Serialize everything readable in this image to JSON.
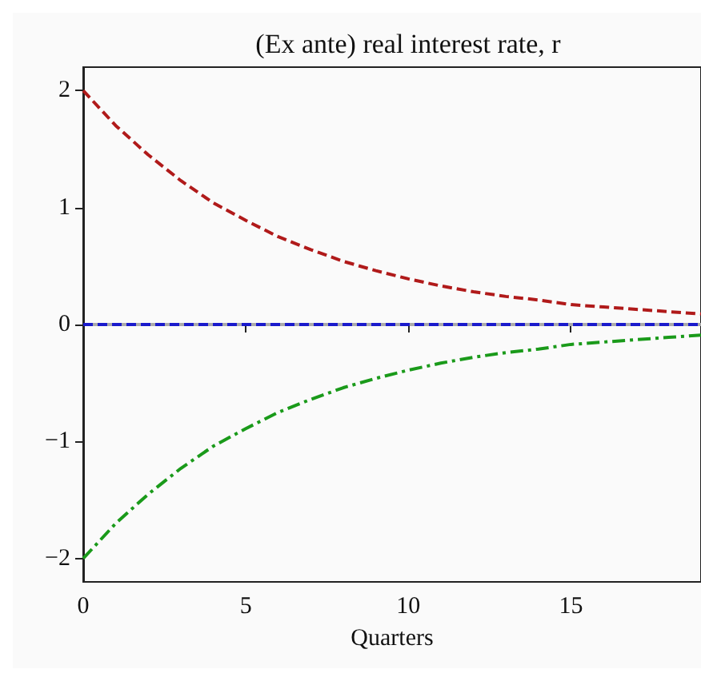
{
  "chart_data": {
    "type": "line",
    "title": "(Ex ante) real interest rate, r",
    "xlabel": "Quarters",
    "x": [
      0,
      1,
      2,
      3,
      4,
      5,
      6,
      7,
      8,
      9,
      10,
      11,
      12,
      13,
      14,
      15,
      16,
      17,
      18,
      19
    ],
    "xlim": [
      0,
      19
    ],
    "xticks": [
      0,
      5,
      10,
      15
    ],
    "ylim": [
      -2.2,
      2.2
    ],
    "yticks": [
      {
        "value": -2,
        "label": "−2"
      },
      {
        "value": -1,
        "label": "−1"
      },
      0,
      1,
      2
    ],
    "grid": false,
    "marker": "none",
    "series": [
      {
        "color": "#aaaaaa",
        "line_style": "solid",
        "values": [
          0,
          0,
          0,
          0,
          0,
          0,
          0,
          0,
          0,
          0,
          0,
          0,
          0,
          0,
          0,
          0,
          0,
          0,
          0,
          0
        ]
      },
      {
        "color": "#1a1acc",
        "line_style": "dashed",
        "values": [
          0,
          0,
          0,
          0,
          0,
          0,
          0,
          0,
          0,
          0,
          0,
          0,
          0,
          0,
          0,
          0,
          0,
          0,
          0,
          0
        ]
      },
      {
        "color": "#b01a1a",
        "line_style": "dashed",
        "values": [
          2,
          1.7,
          1.45,
          1.23,
          1.04,
          0.89,
          0.75,
          0.64,
          0.54,
          0.46,
          0.39,
          0.33,
          0.28,
          0.24,
          0.21,
          0.17,
          0.15,
          0.13,
          0.11,
          0.09
        ]
      },
      {
        "color": "#1a9a1a",
        "line_style": "dashdot",
        "values": [
          -2,
          -1.7,
          -1.45,
          -1.23,
          -1.04,
          -0.89,
          -0.75,
          -0.64,
          -0.54,
          -0.46,
          -0.39,
          -0.33,
          -0.28,
          -0.24,
          -0.21,
          -0.17,
          -0.15,
          -0.13,
          -0.11,
          -0.09
        ]
      }
    ]
  }
}
